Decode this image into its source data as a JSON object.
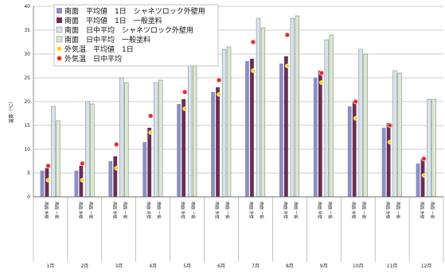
{
  "chart_data": {
    "type": "bar",
    "ylabel": "温度（℃）",
    "ylim": [
      0,
      40
    ],
    "yticks": [
      0,
      5,
      10,
      15,
      20,
      25,
      30,
      35,
      40
    ],
    "grid": true,
    "legend_position": "top-left",
    "categories": [
      "1月",
      "2月",
      "3月",
      "4月",
      "5月",
      "6月",
      "7月",
      "8月",
      "9月",
      "10月",
      "11月",
      "12月"
    ],
    "bar_sublabels": [
      "南面 外壁",
      "南面 一般"
    ],
    "series": [
      {
        "name": "南面　平均値　1日　シャネツロック外壁用",
        "kind": "bar",
        "color": "#8a8fc4",
        "values": [
          5.5,
          5.5,
          7.5,
          11.5,
          19.5,
          22.0,
          28.5,
          28.0,
          25.0,
          19.0,
          14.5,
          7.0
        ]
      },
      {
        "name": "南面　平均値　1日　一般塗料",
        "kind": "bar",
        "color": "#6a2e54",
        "values": [
          6.0,
          6.5,
          8.5,
          14.5,
          20.5,
          23.0,
          29.0,
          29.5,
          26.5,
          20.0,
          15.5,
          8.0
        ]
      },
      {
        "name": "南面　日中平均　シャネツロック外壁用",
        "kind": "bar",
        "color": "#d9e3ef",
        "values": [
          19.0,
          20.0,
          25.0,
          24.0,
          30.0,
          31.0,
          37.5,
          37.5,
          33.0,
          31.0,
          26.5,
          20.5
        ]
      },
      {
        "name": "南面　日中平均　一般塗料",
        "kind": "bar",
        "color": "#dce8d2",
        "values": [
          16.0,
          19.5,
          24.0,
          24.5,
          29.5,
          31.5,
          35.5,
          38.0,
          34.0,
          30.0,
          26.0,
          20.5
        ]
      },
      {
        "name": "外気温　平均値　1日",
        "kind": "marker",
        "color": "#f2d21a",
        "values": [
          3.5,
          3.5,
          6.0,
          13.5,
          18.5,
          21.5,
          26.5,
          27.5,
          24.0,
          16.5,
          11.5,
          4.5
        ]
      },
      {
        "name": "外気温　日中平均",
        "kind": "marker",
        "color": "#dd2a2a",
        "values": [
          6.5,
          7.0,
          11.0,
          17.0,
          22.0,
          24.5,
          32.5,
          34.0,
          26.0,
          20.0,
          15.0,
          8.0
        ]
      }
    ]
  }
}
